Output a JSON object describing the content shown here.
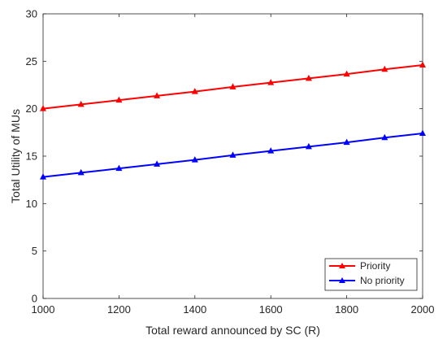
{
  "chart_data": {
    "type": "line",
    "title": "",
    "xlabel": "Total reward announced by SC (R)",
    "ylabel": "Total Utility of MUs",
    "xlim": [
      1000,
      2000
    ],
    "ylim": [
      0,
      30
    ],
    "xticks": [
      1000,
      1200,
      1400,
      1600,
      1800,
      2000
    ],
    "yticks": [
      0,
      5,
      10,
      15,
      20,
      25,
      30
    ],
    "grid": false,
    "legend_position": "bottom-right",
    "x": [
      1000,
      1100,
      1200,
      1300,
      1400,
      1500,
      1600,
      1700,
      1800,
      1900,
      2000
    ],
    "series": [
      {
        "name": "Priority",
        "color": "#ff0000",
        "marker": "triangle",
        "values": [
          20.0,
          20.45,
          20.9,
          21.35,
          21.8,
          22.3,
          22.75,
          23.2,
          23.65,
          24.15,
          24.6
        ]
      },
      {
        "name": "No priority",
        "color": "#0000ff",
        "marker": "triangle",
        "values": [
          12.8,
          13.25,
          13.7,
          14.15,
          14.6,
          15.1,
          15.55,
          16.0,
          16.45,
          16.95,
          17.4
        ]
      }
    ]
  }
}
